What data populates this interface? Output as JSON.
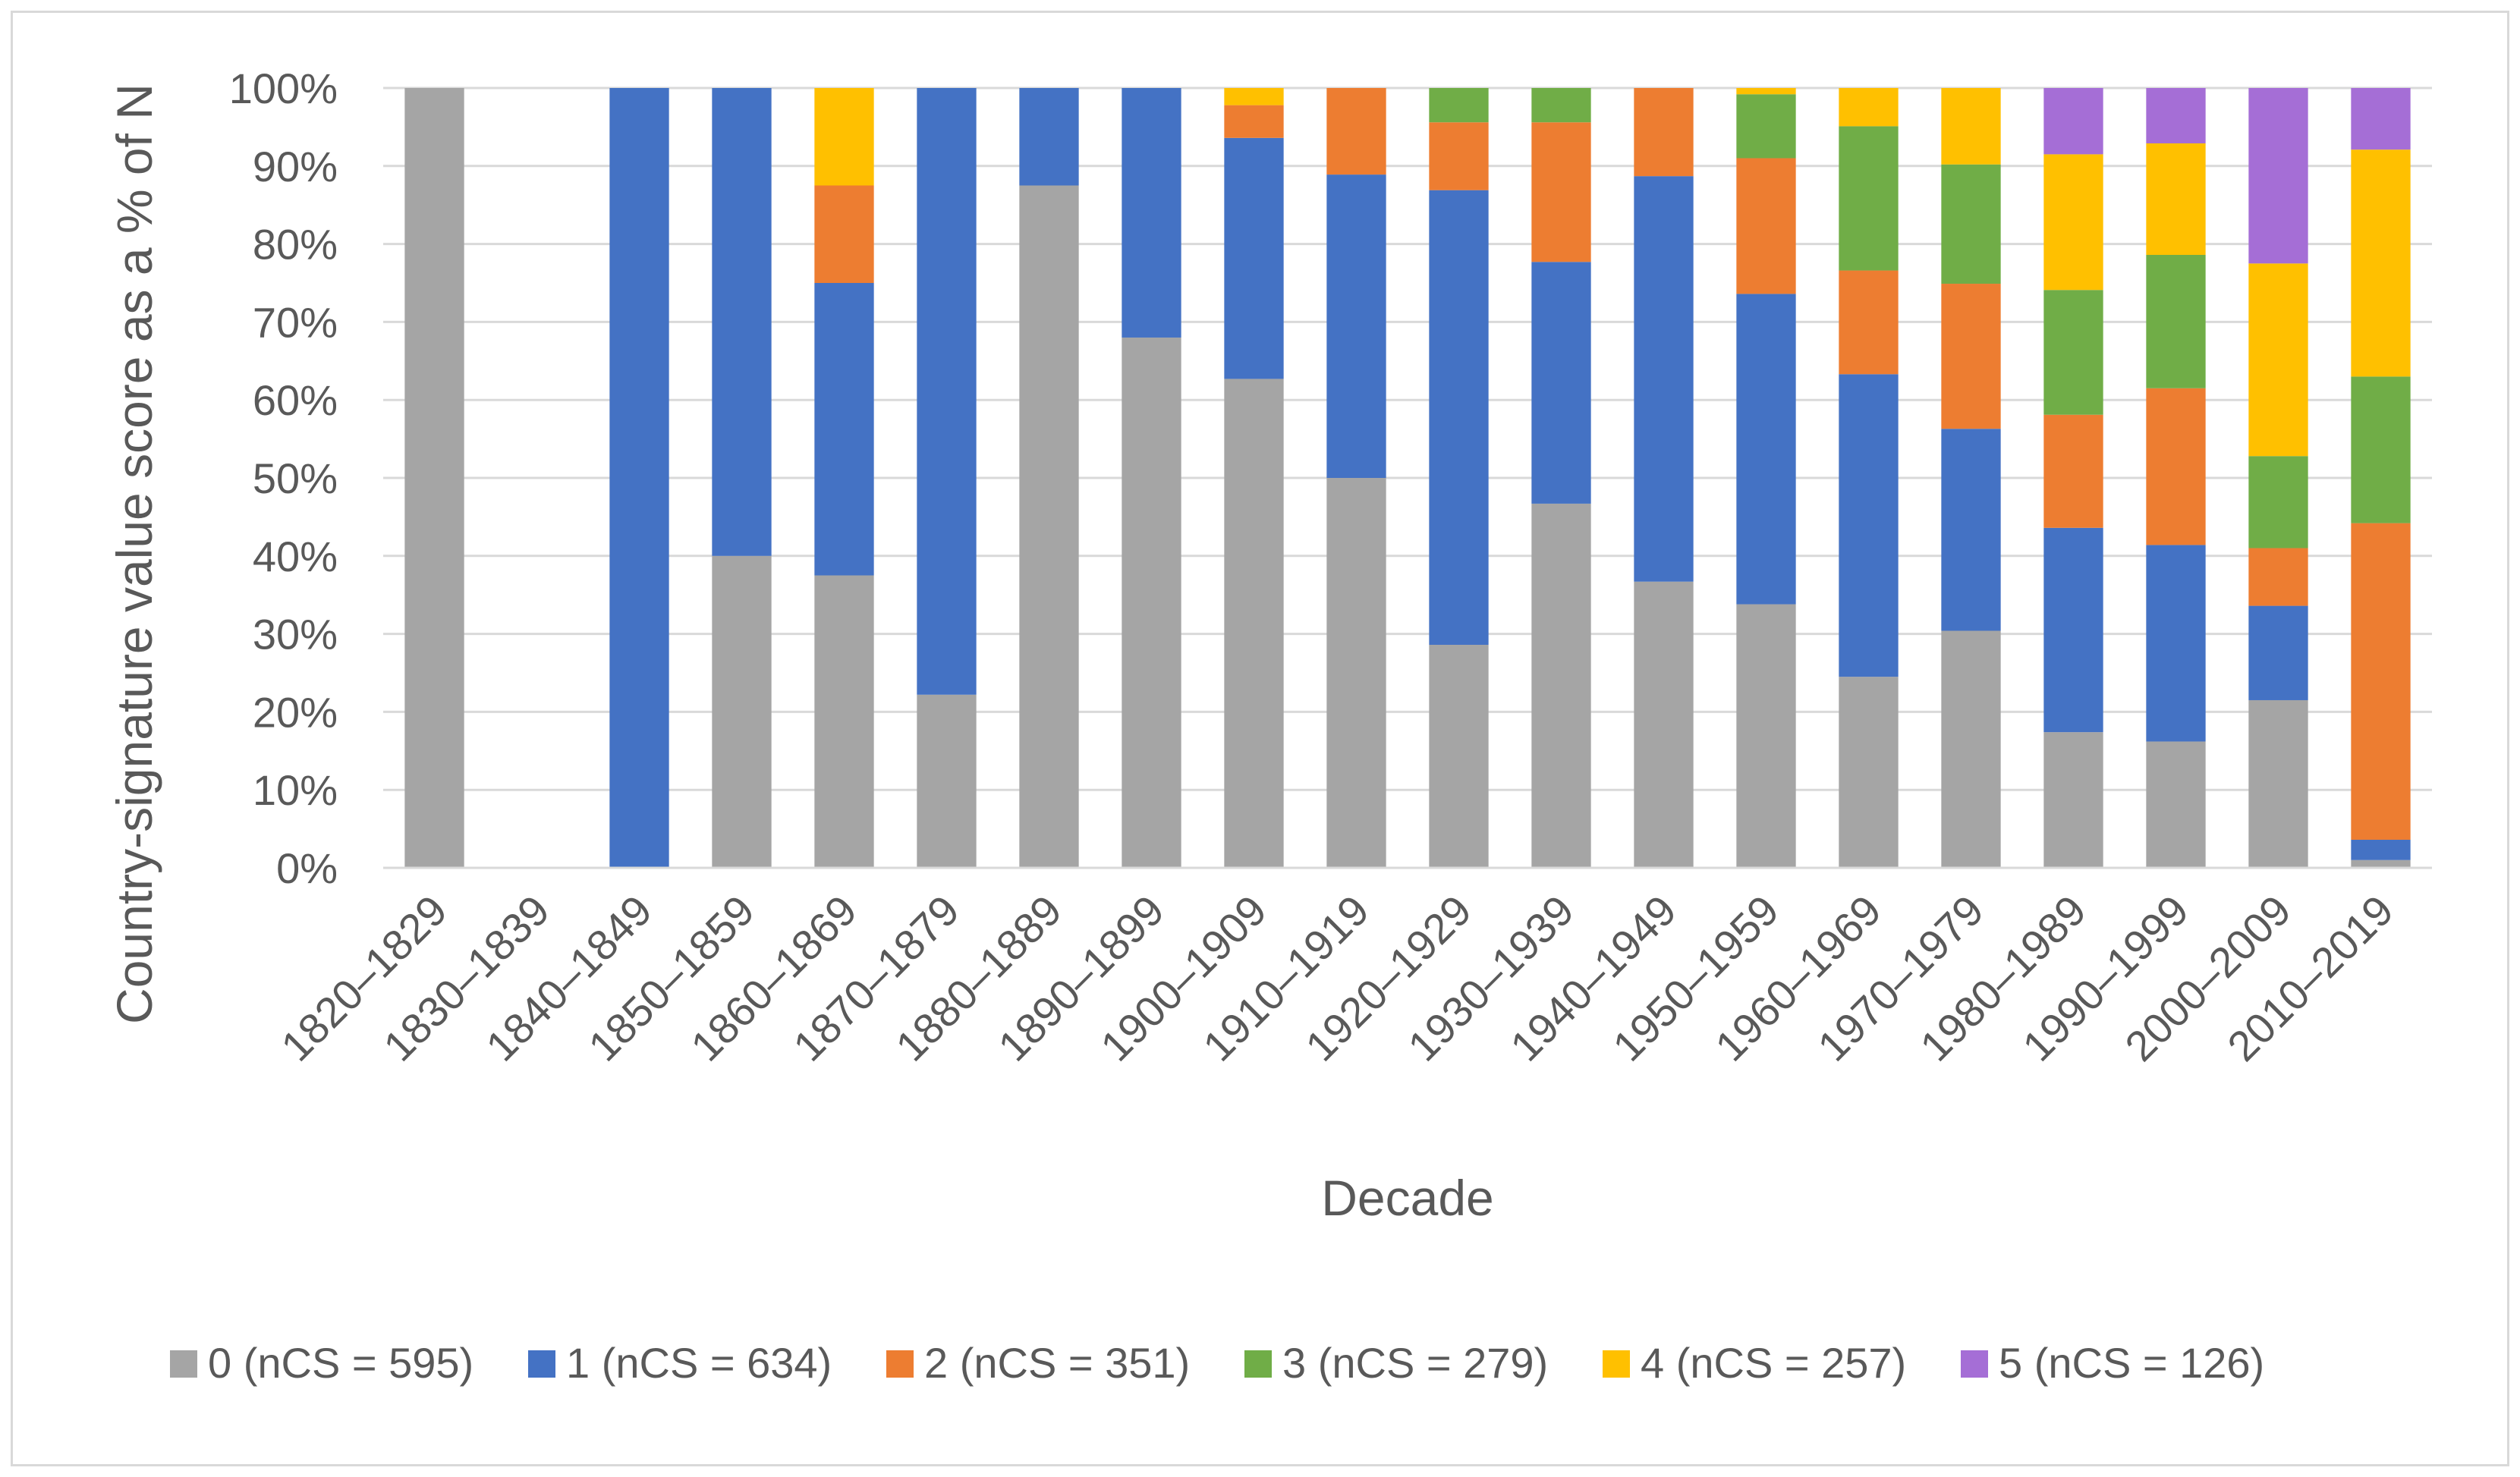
{
  "chart_data": {
    "type": "bar",
    "stacked": true,
    "title": "",
    "xlabel": "Decade",
    "ylabel": "Country-signature value score as a % of N",
    "ylim": [
      0,
      100
    ],
    "y_ticks": [
      "0%",
      "10%",
      "20%",
      "30%",
      "40%",
      "50%",
      "60%",
      "70%",
      "80%",
      "90%",
      "100%"
    ],
    "grid": true,
    "legend_position": "bottom",
    "categories": [
      "1820–1829",
      "1830–1839",
      "1840–1849",
      "1850–1859",
      "1860–1869",
      "1870–1879",
      "1880–1889",
      "1890–1899",
      "1900–1909",
      "1910–1919",
      "1920–1929",
      "1930–1939",
      "1940–1949",
      "1950–1959",
      "1960–1969",
      "1970–1979",
      "1980–1989",
      "1990–1999",
      "2000–2009",
      "2010–2019"
    ],
    "series": [
      {
        "name": "0 (nCS = 595)",
        "color": "#a5a5a5",
        "values": [
          100,
          0,
          0,
          40,
          37.5,
          22.2,
          87.5,
          68,
          62.7,
          50,
          28.6,
          46.7,
          36.7,
          33.8,
          24.5,
          30.4,
          17.4,
          16.2,
          21.5,
          1
        ]
      },
      {
        "name": "1 (nCS = 634)",
        "color": "#4472c4",
        "values": [
          0,
          0,
          100,
          60,
          37.5,
          77.8,
          12.5,
          32,
          30.9,
          38.9,
          58.3,
          31,
          52,
          39.8,
          38.8,
          25.9,
          26.2,
          25.2,
          12.1,
          2.6
        ]
      },
      {
        "name": "2 (nCS = 351)",
        "color": "#ed7d31",
        "values": [
          0,
          0,
          0,
          0,
          12.5,
          0,
          0,
          0,
          4.2,
          11.1,
          8.7,
          17.9,
          11.3,
          17.4,
          13.3,
          18.6,
          14.5,
          20.1,
          7.4,
          40.6
        ]
      },
      {
        "name": "3 (nCS = 279)",
        "color": "#70ad47",
        "values": [
          0,
          0,
          0,
          0,
          0,
          0,
          0,
          0,
          0,
          0,
          4.4,
          4.4,
          0,
          8.2,
          18.5,
          15.3,
          16,
          17.1,
          11.8,
          18.8
        ]
      },
      {
        "name": "4 (nCS = 257)",
        "color": "#ffc000",
        "values": [
          0,
          0,
          0,
          0,
          12.5,
          0,
          0,
          0,
          2.2,
          0,
          0,
          0,
          0,
          0.8,
          4.9,
          9.8,
          17.4,
          14.3,
          24.7,
          29.1
        ]
      },
      {
        "name": "5 (nCS = 126)",
        "color": "#a56ed6",
        "values": [
          0,
          0,
          0,
          0,
          0,
          0,
          0,
          0,
          0,
          0,
          0,
          0,
          0,
          0,
          0,
          0,
          8.5,
          7.1,
          22.5,
          7.9
        ]
      }
    ]
  }
}
